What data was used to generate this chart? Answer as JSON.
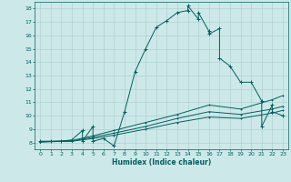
{
  "xlabel": "Humidex (Indice chaleur)",
  "bg_color": "#cce8e8",
  "grid_color": "#aacccc",
  "line_color": "#006060",
  "xlim": [
    -0.5,
    23.5
  ],
  "ylim": [
    7.5,
    18.5
  ],
  "xticks": [
    0,
    1,
    2,
    3,
    4,
    5,
    6,
    7,
    8,
    9,
    10,
    11,
    12,
    13,
    14,
    15,
    16,
    17,
    18,
    19,
    20,
    21,
    22,
    23
  ],
  "yticks": [
    8,
    9,
    10,
    11,
    12,
    13,
    14,
    15,
    16,
    17,
    18
  ],
  "curve1_x": [
    0,
    1,
    2,
    3,
    3,
    4,
    4,
    5,
    5,
    6,
    7,
    8,
    9,
    10,
    11,
    12,
    13,
    14,
    14,
    15,
    15,
    16,
    16,
    17,
    17,
    18,
    19,
    20,
    21,
    21,
    22,
    22,
    23
  ],
  "curve1_y": [
    8.1,
    8.1,
    8.1,
    8.2,
    8.2,
    8.9,
    8.1,
    9.2,
    8.1,
    8.3,
    7.75,
    10.3,
    13.3,
    15.0,
    16.6,
    17.1,
    17.7,
    17.85,
    18.2,
    17.2,
    17.7,
    16.3,
    16.1,
    16.5,
    14.3,
    13.7,
    12.5,
    12.5,
    11.1,
    9.2,
    10.8,
    10.3,
    10.0
  ],
  "curve2_x": [
    0,
    3,
    5,
    7,
    10,
    13,
    16,
    19,
    22,
    23
  ],
  "curve2_y": [
    8.05,
    8.1,
    8.3,
    8.55,
    9.0,
    9.5,
    9.9,
    9.8,
    10.2,
    10.4
  ],
  "curve3_x": [
    0,
    3,
    5,
    7,
    10,
    13,
    16,
    19,
    22,
    23
  ],
  "curve3_y": [
    8.05,
    8.1,
    8.4,
    8.7,
    9.2,
    9.8,
    10.3,
    10.1,
    10.5,
    10.7
  ],
  "curve4_x": [
    0,
    3,
    5,
    7,
    10,
    13,
    16,
    19,
    22,
    23
  ],
  "curve4_y": [
    8.05,
    8.15,
    8.5,
    8.9,
    9.5,
    10.1,
    10.8,
    10.5,
    11.2,
    11.5
  ]
}
